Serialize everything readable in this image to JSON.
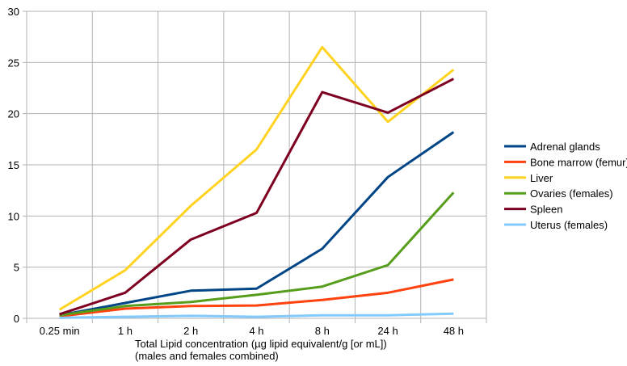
{
  "chart_data": {
    "type": "line",
    "title": "",
    "xlabel": "Total Lipid concentration (µg lipid equivalent/g [or mL])",
    "xlabel2": "(males and females combined)",
    "ylabel": "",
    "ylim": [
      0,
      30
    ],
    "yticks": [
      0,
      5,
      10,
      15,
      20,
      25,
      30
    ],
    "grid": true,
    "legend": "right",
    "categories": [
      "0.25 min",
      "1 h",
      "2 h",
      "4 h",
      "8 h",
      "24 h",
      "48 h"
    ],
    "series": [
      {
        "name": "Adrenal glands",
        "color": "#004586",
        "values": [
          0.3,
          1.5,
          2.7,
          2.9,
          6.8,
          13.8,
          18.2
        ]
      },
      {
        "name": "Bone marrow (femur)",
        "color": "#ff420e",
        "values": [
          0.2,
          0.95,
          1.2,
          1.25,
          1.8,
          2.5,
          3.8
        ]
      },
      {
        "name": "Liver",
        "color": "#ffd320",
        "values": [
          0.85,
          4.7,
          11.0,
          16.5,
          26.5,
          19.2,
          24.3
        ]
      },
      {
        "name": "Ovaries (females)",
        "color": "#579d1c",
        "values": [
          0.3,
          1.2,
          1.6,
          2.3,
          3.1,
          5.2,
          12.3
        ]
      },
      {
        "name": "Spleen",
        "color": "#7e0021",
        "values": [
          0.4,
          2.5,
          7.7,
          10.3,
          22.1,
          20.1,
          23.4
        ]
      },
      {
        "name": "Uterus (females)",
        "color": "#83caff",
        "values": [
          0.05,
          0.15,
          0.25,
          0.15,
          0.3,
          0.3,
          0.45
        ]
      }
    ]
  }
}
